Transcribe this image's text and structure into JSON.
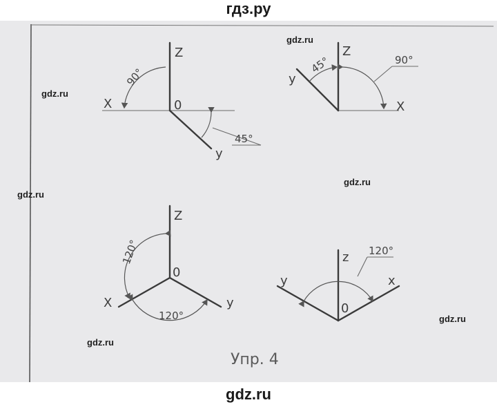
{
  "header": {
    "site_title": "гдз.ру"
  },
  "footer": {
    "site_url": "gdz.ru"
  },
  "watermarks": [
    "gdz.ru",
    "gdz.ru",
    "gdz.ru",
    "gdz.ru",
    "gdz.ru",
    "gdz.ru"
  ],
  "diagram1": {
    "z": "Z",
    "x": "X",
    "o": "0",
    "y": "y",
    "angle_top": "90°",
    "angle_bottom": "45°"
  },
  "diagram2": {
    "z": "Z",
    "y": "y",
    "x": "X",
    "angle_left": "45°",
    "angle_right": "90°"
  },
  "diagram3": {
    "z": "Z",
    "o": "0",
    "x": "X",
    "y": "y",
    "angle_left": "120°",
    "angle_bottom": "120°"
  },
  "diagram4": {
    "z": "z",
    "y": "y",
    "x": "x",
    "o": "0",
    "angle_top": "120°"
  },
  "caption": "Упр. 4",
  "colors": {
    "paper": "#e9e9eb",
    "ink": "#3a3a3a"
  }
}
